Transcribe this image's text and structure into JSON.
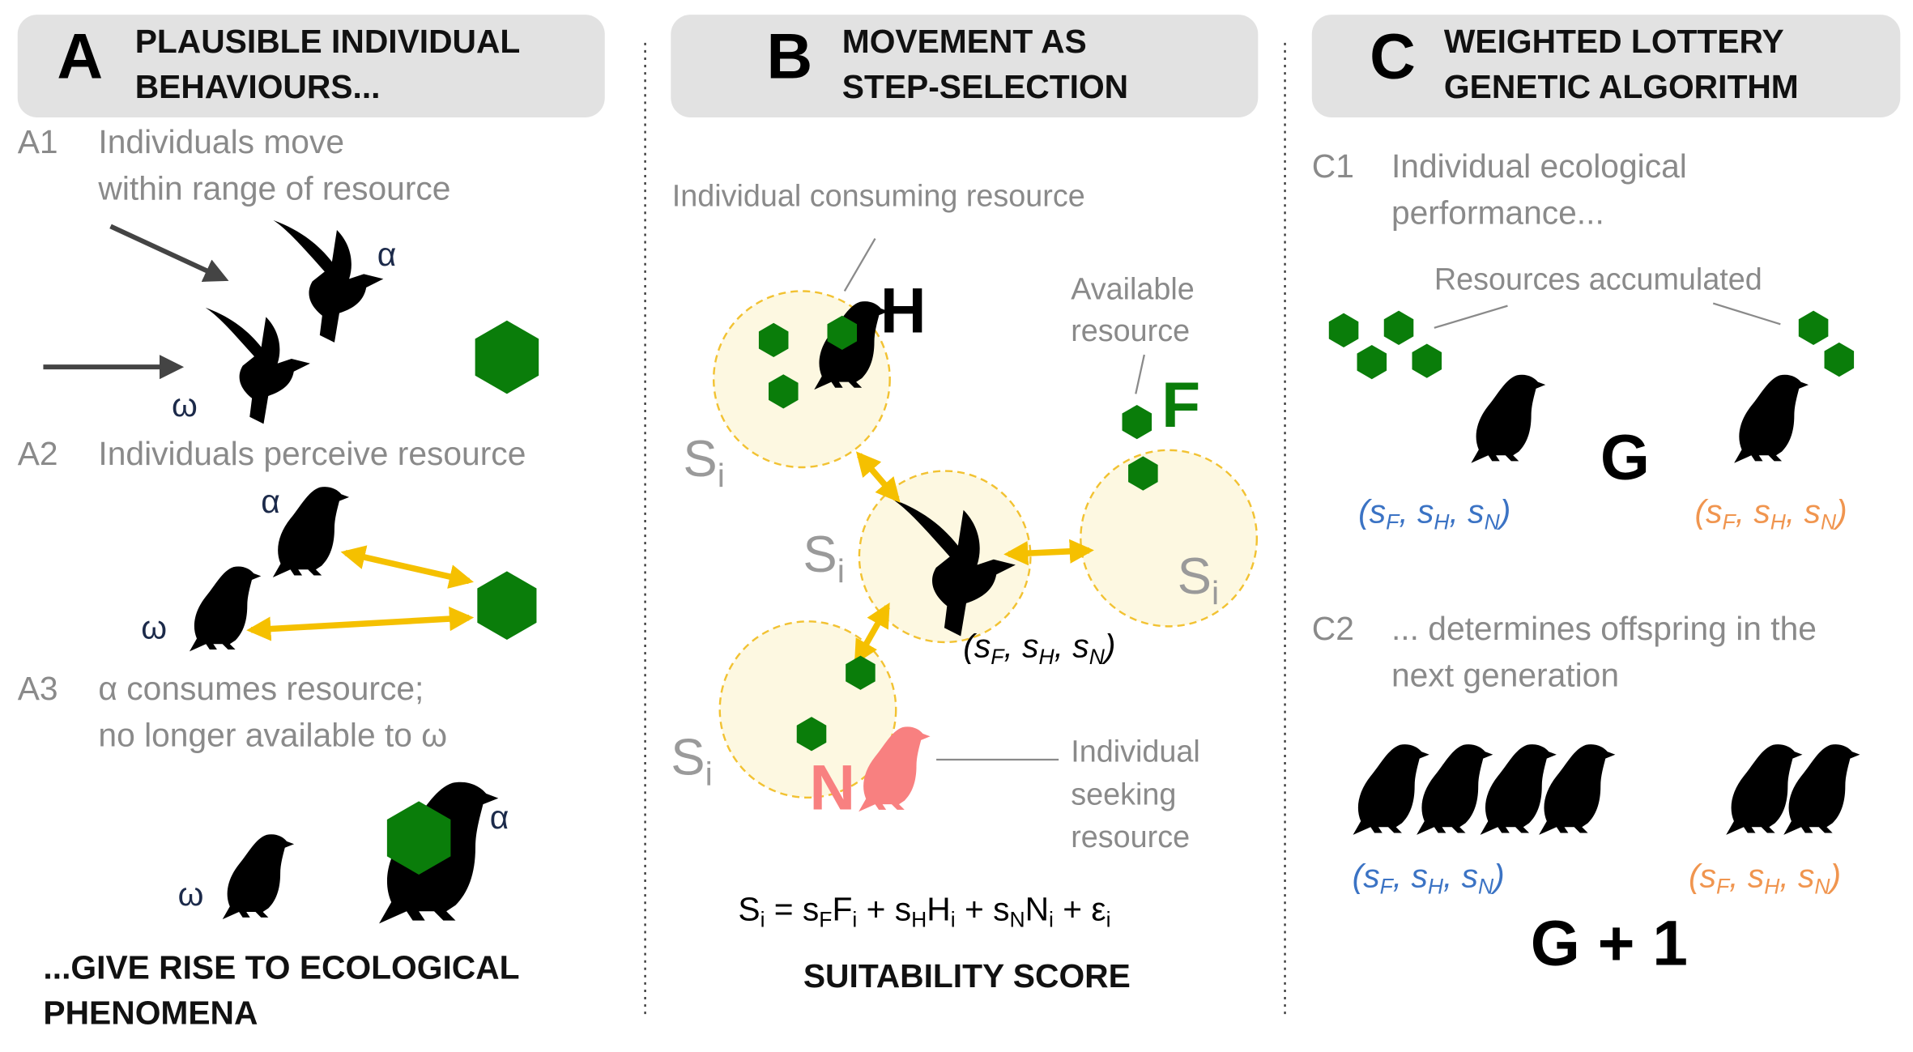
{
  "panel_a": {
    "letter": "A",
    "title": [
      "PLAUSIBLE INDIVIDUAL",
      "BEHAVIOURS..."
    ],
    "steps": [
      {
        "id": "A1",
        "text": [
          "Individuals move",
          "within range of resource"
        ]
      },
      {
        "id": "A2",
        "text": [
          "Individuals perceive resource"
        ]
      },
      {
        "id": "A3",
        "text": [
          "α consumes resource;",
          "no longer available to ω"
        ]
      }
    ],
    "alpha": "α",
    "omega": "ω",
    "footer": [
      "...GIVE RISE TO ECOLOGICAL",
      "PHENOMENA"
    ]
  },
  "panel_b": {
    "letter": "B",
    "title": [
      "MOVEMENT AS",
      "STEP-SELECTION"
    ],
    "callout_consuming": "Individual consuming resource",
    "callout_available": [
      "Available",
      "resource"
    ],
    "callout_seeking": [
      "Individual",
      "seeking",
      "resource"
    ],
    "letter_h": "H",
    "letter_f": "F",
    "letter_n": "N",
    "site_label": [
      "S",
      "i"
    ],
    "weights": [
      "(s",
      "F",
      ", s",
      "H",
      ", s",
      "N",
      ")"
    ],
    "equation": [
      "S",
      "i",
      " = s",
      "F",
      "F",
      "i",
      " + s",
      "H",
      "H",
      "i",
      " + s",
      "N",
      "N",
      "i",
      " + ε",
      "i"
    ],
    "score_label": "SUITABILITY SCORE"
  },
  "panel_c": {
    "letter": "C",
    "title": [
      "WEIGHTED LOTTERY",
      "GENETIC ALGORITHM"
    ],
    "steps": [
      {
        "id": "C1",
        "text": [
          "Individual ecological",
          "performance..."
        ]
      },
      {
        "id": "C2",
        "text": [
          "... determines offspring in the",
          "next generation"
        ]
      }
    ],
    "callout_resources": "Resources accumulated",
    "generation": "G",
    "next_generation": "G + 1",
    "weights": [
      "(s",
      "F",
      ", s",
      "H",
      ", s",
      "N",
      ")"
    ]
  }
}
